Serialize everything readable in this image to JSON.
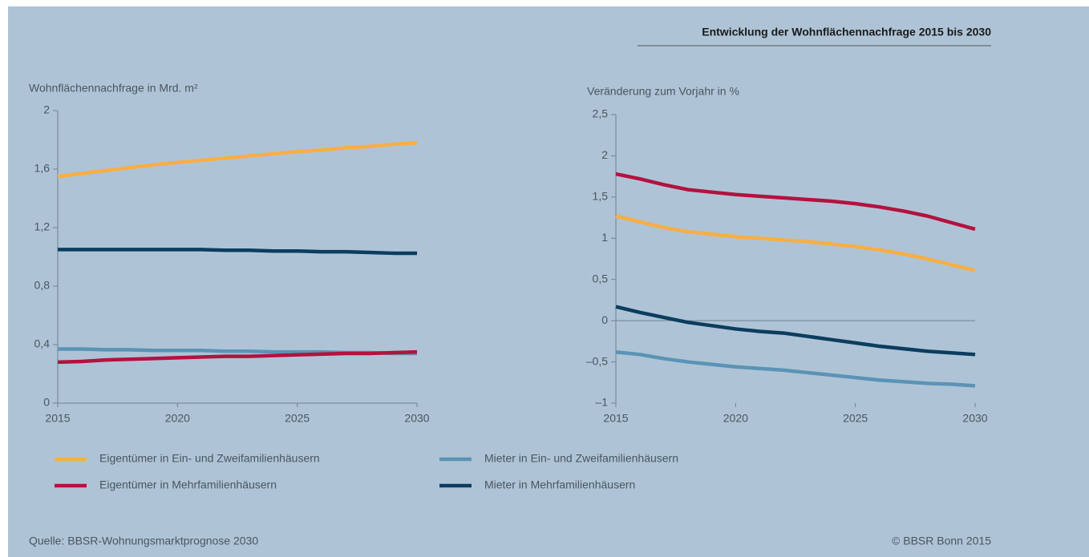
{
  "title": "Entwicklung der Wohnflächennachfrage 2015 bis 2030",
  "source": "Quelle: BBSR-Wohnungsmarktprognose 2030",
  "copyright": "© BBSR Bonn 2015",
  "chart_data": [
    {
      "type": "line",
      "ylabel": "Wohnflächennachfrage in Mrd. m²",
      "x": [
        2015,
        2016,
        2017,
        2018,
        2019,
        2020,
        2021,
        2022,
        2023,
        2024,
        2025,
        2026,
        2027,
        2028,
        2029,
        2030
      ],
      "xlim": [
        2015,
        2030
      ],
      "xticks": [
        2015,
        2020,
        2025,
        2030
      ],
      "ylim": [
        0,
        2
      ],
      "yticks": [
        0,
        {
          "value": 0.4,
          "label": "0,4"
        },
        {
          "value": 0.8,
          "label": "0,8"
        },
        {
          "value": 1.2,
          "label": "1,2"
        },
        {
          "value": 1.6,
          "label": "1,6"
        },
        2
      ],
      "series": [
        {
          "name": "Eigentümer in Ein- und Zweifamilienhäusern",
          "color": "#f7ae45",
          "values": [
            1.55,
            1.57,
            1.59,
            1.61,
            1.63,
            1.645,
            1.66,
            1.675,
            1.69,
            1.705,
            1.72,
            1.73,
            1.745,
            1.755,
            1.77,
            1.78
          ]
        },
        {
          "name": "Mieter in Ein- und Zweifamilienhäusern",
          "color": "#5b93b6",
          "values": [
            0.37,
            0.37,
            0.365,
            0.365,
            0.36,
            0.36,
            0.36,
            0.355,
            0.355,
            0.35,
            0.35,
            0.35,
            0.345,
            0.345,
            0.34,
            0.34
          ]
        },
        {
          "name": "Eigentümer in Mehrfamilienhäusern",
          "color": "#b3123f",
          "values": [
            0.28,
            0.285,
            0.295,
            0.3,
            0.305,
            0.31,
            0.315,
            0.32,
            0.32,
            0.325,
            0.33,
            0.335,
            0.34,
            0.34,
            0.345,
            0.35
          ]
        },
        {
          "name": "Mieter in Mehrfamilienhäusern",
          "color": "#0b3d5e",
          "values": [
            1.05,
            1.05,
            1.05,
            1.05,
            1.05,
            1.05,
            1.05,
            1.045,
            1.045,
            1.04,
            1.04,
            1.035,
            1.035,
            1.03,
            1.025,
            1.025
          ]
        }
      ]
    },
    {
      "type": "line",
      "ylabel": "Veränderung  zum Vorjahr in %",
      "x": [
        2015,
        2016,
        2017,
        2018,
        2019,
        2020,
        2021,
        2022,
        2023,
        2024,
        2025,
        2026,
        2027,
        2028,
        2029,
        2030
      ],
      "xlim": [
        2015,
        2030
      ],
      "xticks": [
        2015,
        2020,
        2025,
        2030
      ],
      "ylim": [
        -1,
        2.5
      ],
      "yticks": [
        {
          "value": -1,
          "label": "–1"
        },
        {
          "value": -0.5,
          "label": "–0,5"
        },
        0,
        {
          "value": 0.5,
          "label": "0,5"
        },
        1,
        {
          "value": 1.5,
          "label": "1,5"
        },
        2,
        {
          "value": 2.5,
          "label": "2,5"
        }
      ],
      "series": [
        {
          "name": "Eigentümer in Ein- und Zweifamilienhäusern",
          "color": "#f7ae45",
          "values": [
            1.27,
            1.2,
            1.13,
            1.08,
            1.05,
            1.02,
            1.0,
            0.98,
            0.96,
            0.93,
            0.9,
            0.86,
            0.81,
            0.75,
            0.68,
            0.61
          ]
        },
        {
          "name": "Mieter in Ein- und Zweifamilienhäusern",
          "color": "#5b93b6",
          "values": [
            -0.38,
            -0.41,
            -0.46,
            -0.5,
            -0.53,
            -0.56,
            -0.58,
            -0.6,
            -0.63,
            -0.66,
            -0.69,
            -0.72,
            -0.74,
            -0.76,
            -0.77,
            -0.79
          ]
        },
        {
          "name": "Eigentümer in Mehrfamilienhäusern",
          "color": "#b3123f",
          "values": [
            1.78,
            1.72,
            1.65,
            1.59,
            1.56,
            1.53,
            1.51,
            1.49,
            1.47,
            1.45,
            1.42,
            1.38,
            1.33,
            1.27,
            1.19,
            1.11
          ]
        },
        {
          "name": "Mieter in Mehrfamilienhäusern",
          "color": "#0b3d5e",
          "values": [
            0.17,
            0.1,
            0.04,
            -0.02,
            -0.06,
            -0.1,
            -0.13,
            -0.15,
            -0.19,
            -0.23,
            -0.27,
            -0.31,
            -0.34,
            -0.37,
            -0.39,
            -0.41
          ]
        }
      ]
    }
  ]
}
